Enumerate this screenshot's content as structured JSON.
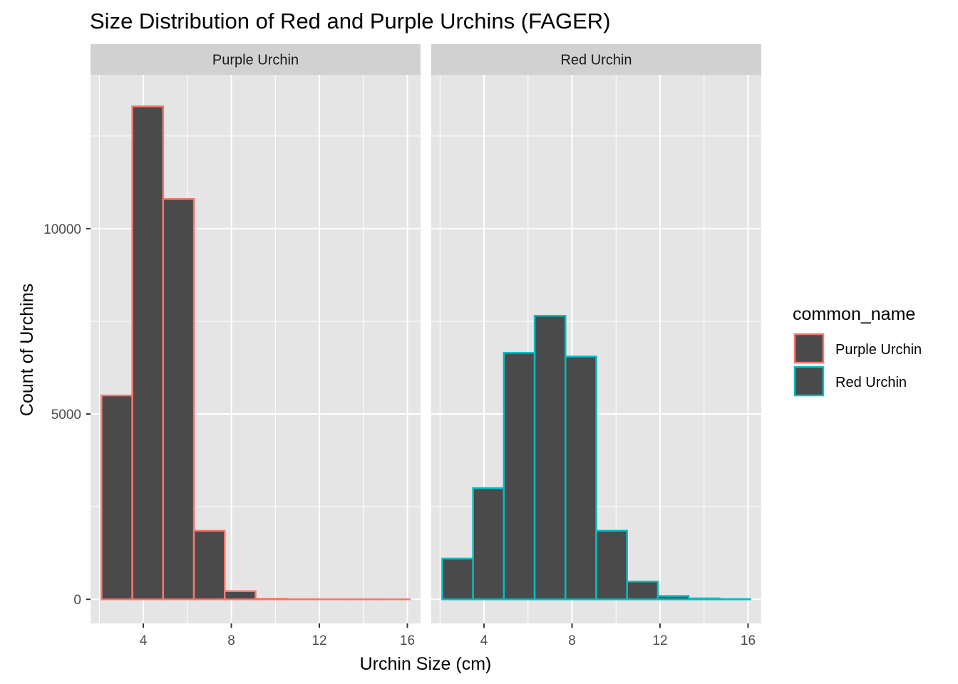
{
  "chart_data": {
    "type": "bar",
    "title": "Size Distribution of Red and Purple Urchins (FAGER)",
    "xlabel": "Urchin Size (cm)",
    "ylabel": "Count of Urchins",
    "xlim": [
      1.6,
      16.6
    ],
    "ylim": [
      -650,
      14150
    ],
    "x_ticks": [
      4,
      8,
      12,
      16
    ],
    "y_ticks": [
      0,
      5000,
      10000
    ],
    "y_tick_labels": [
      "0",
      "5000",
      "10000"
    ],
    "bin_edges": [
      2.1,
      3.5,
      4.9,
      6.3,
      7.7,
      9.1,
      10.5,
      11.9,
      13.3,
      14.7,
      16.1
    ],
    "fill_color": "#4a4a4a",
    "grid": true,
    "panel_background": "#e5e5e5",
    "strip_background": "#d1d1d1",
    "series": [
      {
        "name": "Purple Urchin",
        "facet_label": "Purple Urchin",
        "outline_color": "#f8766d",
        "values": [
          5500,
          13300,
          10800,
          1850,
          220,
          15,
          5,
          3,
          2,
          1
        ]
      },
      {
        "name": "Red Urchin",
        "facet_label": "Red Urchin",
        "outline_color": "#00bfc4",
        "values": [
          1100,
          3000,
          6650,
          7650,
          6550,
          1850,
          480,
          90,
          25,
          8
        ]
      }
    ],
    "legend": {
      "title": "common_name",
      "placement": "right",
      "entries": [
        "Purple Urchin",
        "Red Urchin"
      ]
    }
  }
}
